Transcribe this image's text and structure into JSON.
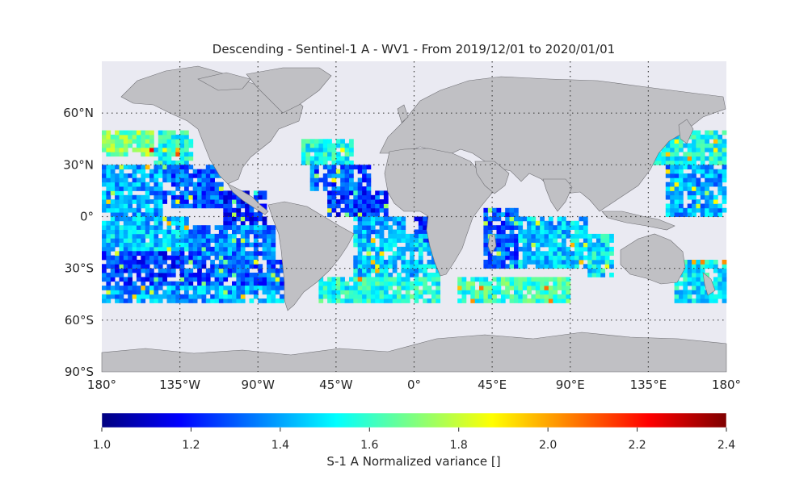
{
  "chart_data": {
    "type": "heatmap",
    "title": "Descending - Sentinel-1 A - WV1 - From 2019/12/01 to 2020/01/01",
    "projection": "equirectangular world map",
    "colormap": "jet",
    "colorbar_label": "S-1 A Normalized variance []",
    "colorbar_range": [
      1.0,
      2.4
    ],
    "colorbar_ticks": [
      "1.0",
      "1.2",
      "1.4",
      "1.6",
      "1.8",
      "2.0",
      "2.2",
      "2.4"
    ],
    "xlim": [
      -180,
      180
    ],
    "ylim": [
      -90,
      90
    ],
    "x_ticks": [
      {
        "value": -180,
        "label": "180°"
      },
      {
        "value": -135,
        "label": "135°W"
      },
      {
        "value": -90,
        "label": "90°W"
      },
      {
        "value": -45,
        "label": "45°W"
      },
      {
        "value": 0,
        "label": "0°"
      },
      {
        "value": 45,
        "label": "45°E"
      },
      {
        "value": 90,
        "label": "90°E"
      },
      {
        "value": 135,
        "label": "135°E"
      },
      {
        "value": 180,
        "label": "180°"
      }
    ],
    "y_ticks": [
      {
        "value": 60,
        "label": "60°N"
      },
      {
        "value": 30,
        "label": "30°N"
      },
      {
        "value": 0,
        "label": "0°"
      },
      {
        "value": -30,
        "label": "30°S"
      },
      {
        "value": -60,
        "label": "60°S"
      },
      {
        "value": -90,
        "label": "90°S"
      }
    ],
    "grid": "dotted",
    "ocean_color": "#eaeaf2",
    "land_color": "#c0c0c4",
    "regions": [
      {
        "lon": [
          -180,
          -150
        ],
        "lat": [
          35,
          50
        ],
        "value": 1.7
      },
      {
        "lon": [
          -150,
          -128
        ],
        "lat": [
          30,
          50
        ],
        "value": 1.55
      },
      {
        "lon": [
          -180,
          -145
        ],
        "lat": [
          0,
          30
        ],
        "value": 1.4
      },
      {
        "lon": [
          -145,
          -110
        ],
        "lat": [
          5,
          30
        ],
        "value": 1.3
      },
      {
        "lon": [
          -110,
          -85
        ],
        "lat": [
          -5,
          15
        ],
        "value": 1.2
      },
      {
        "lon": [
          -180,
          -130
        ],
        "lat": [
          -20,
          0
        ],
        "value": 1.45
      },
      {
        "lon": [
          -130,
          -80
        ],
        "lat": [
          -25,
          -5
        ],
        "value": 1.35
      },
      {
        "lon": [
          -180,
          -120
        ],
        "lat": [
          -40,
          -20
        ],
        "value": 1.25
      },
      {
        "lon": [
          -120,
          -76
        ],
        "lat": [
          -40,
          -25
        ],
        "value": 1.3
      },
      {
        "lon": [
          -180,
          -76
        ],
        "lat": [
          -50,
          -40
        ],
        "value": 1.4
      },
      {
        "lon": [
          -65,
          -35
        ],
        "lat": [
          30,
          45
        ],
        "value": 1.55
      },
      {
        "lon": [
          -60,
          -25
        ],
        "lat": [
          15,
          30
        ],
        "value": 1.3
      },
      {
        "lon": [
          -50,
          -15
        ],
        "lat": [
          0,
          15
        ],
        "value": 1.25
      },
      {
        "lon": [
          -35,
          -5
        ],
        "lat": [
          -10,
          0
        ],
        "value": 1.4
      },
      {
        "lon": [
          0,
          12
        ],
        "lat": [
          -20,
          0
        ],
        "value": 1.2
      },
      {
        "lon": [
          -35,
          15
        ],
        "lat": [
          -35,
          -10
        ],
        "value": 1.45
      },
      {
        "lon": [
          -55,
          15
        ],
        "lat": [
          -50,
          -35
        ],
        "value": 1.55
      },
      {
        "lon": [
          25,
          90
        ],
        "lat": [
          -50,
          -35
        ],
        "value": 1.6
      },
      {
        "lon": [
          40,
          60
        ],
        "lat": [
          -30,
          5
        ],
        "value": 1.3
      },
      {
        "lon": [
          60,
          100
        ],
        "lat": [
          -30,
          0
        ],
        "value": 1.45
      },
      {
        "lon": [
          100,
          115
        ],
        "lat": [
          -35,
          -10
        ],
        "value": 1.5
      },
      {
        "lon": [
          130,
          180
        ],
        "lat": [
          30,
          50
        ],
        "value": 1.55
      },
      {
        "lon": [
          145,
          180
        ],
        "lat": [
          0,
          30
        ],
        "value": 1.4
      },
      {
        "lon": [
          150,
          180
        ],
        "lat": [
          -50,
          -25
        ],
        "value": 1.5
      }
    ]
  }
}
